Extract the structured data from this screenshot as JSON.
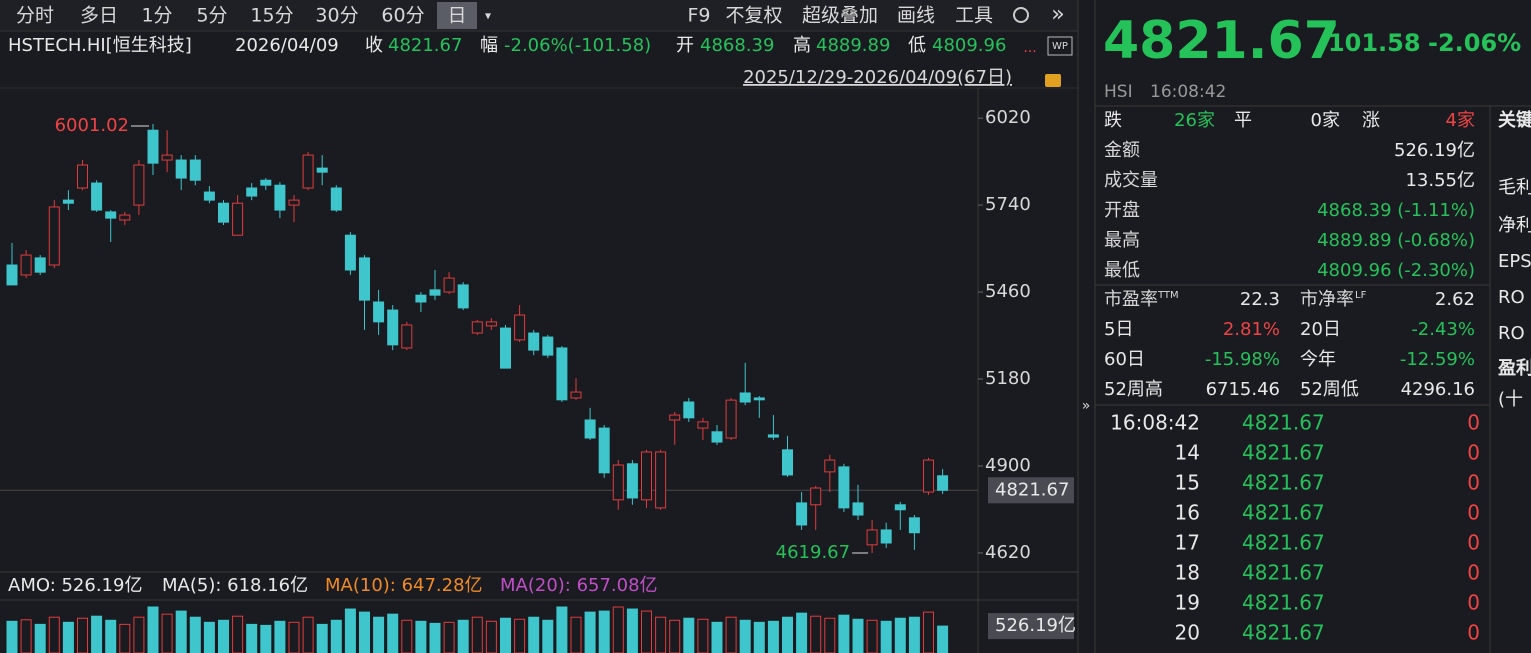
{
  "toolbar": {
    "periods": [
      "分时",
      "多日",
      "1分",
      "5分",
      "15分",
      "30分",
      "60分",
      "日"
    ],
    "tools": [
      "F9",
      "不复权",
      "超级叠加",
      "画线",
      "工具"
    ]
  },
  "quote_line": {
    "symbol": "HSTECH.HI[恒生科技]",
    "date": "2026/04/09",
    "close_label": "收",
    "close": 4821.67,
    "change_label": "幅",
    "change": "-2.06%(-101.58)",
    "open_label": "开",
    "open": 4868.39,
    "high_label": "高",
    "high": 4889.89,
    "low_label": "低",
    "low": 4809.96
  },
  "chart_data": {
    "type": "candlestick",
    "range_label": "2025/12/29-2026/04/09(67日)",
    "open": [
      5547,
      5515,
      5570,
      5547,
      5756,
      5795,
      5811,
      5718,
      5692,
      5740,
      5981,
      5885,
      5885,
      5885,
      5782,
      5746,
      5643,
      5795,
      5820,
      5804,
      5740,
      5795,
      5859,
      5795,
      5643,
      5570,
      5428,
      5402,
      5280,
      5450,
      5467,
      5460,
      5483,
      5328,
      5351,
      5344,
      5306,
      5328,
      5315,
      5280,
      5119,
      5048,
      5022,
      4791,
      4907,
      4791,
      4765,
      5048,
      5106,
      5022,
      5010,
      4990,
      5135,
      5119,
      5000,
      4952,
      4781,
      4775,
      4881,
      4897,
      4781,
      4646,
      4694,
      4775,
      4733,
      4816,
      4868.39
    ],
    "high": [
      5618,
      5595,
      5579,
      5756,
      5788,
      5885,
      5820,
      5724,
      5718,
      5885,
      6001.02,
      5981,
      5901,
      5901,
      5801,
      5756,
      5772,
      5811,
      5827,
      5814,
      5772,
      5911,
      5901,
      5804,
      5653,
      5579,
      5467,
      5418,
      5364,
      5460,
      5531,
      5524,
      5492,
      5370,
      5376,
      5354,
      5418,
      5338,
      5322,
      5286,
      5183,
      5087,
      5032,
      4919,
      4919,
      4952,
      4952,
      5074,
      5119,
      5055,
      5032,
      5119,
      5232,
      5125,
      5064,
      4997,
      4816,
      4836,
      4936,
      4907,
      4839,
      4726,
      4717,
      4784,
      4742,
      4926,
      4889.89
    ],
    "low": [
      5483,
      5505,
      5515,
      5537,
      5724,
      5788,
      5718,
      5621,
      5676,
      5708,
      5837,
      5846,
      5788,
      5804,
      5746,
      5676,
      5643,
      5756,
      5788,
      5698,
      5685,
      5788,
      5804,
      5718,
      5515,
      5338,
      5322,
      5273,
      5273,
      5396,
      5434,
      5454,
      5402,
      5322,
      5338,
      5215,
      5299,
      5257,
      5248,
      5106,
      5113,
      4984,
      4862,
      4759,
      4775,
      4765,
      4759,
      4968,
      5042,
      4984,
      4968,
      4984,
      5096,
      5055,
      4984,
      4865,
      4694,
      4694,
      4816,
      4752,
      4726,
      4619.67,
      4636,
      4694,
      4630,
      4807,
      4809.96
    ],
    "close": [
      5483,
      5579,
      5524,
      5734,
      5746,
      5869,
      5724,
      5698,
      5708,
      5869,
      5875,
      5901,
      5827,
      5820,
      5756,
      5685,
      5746,
      5769,
      5804,
      5724,
      5756,
      5901,
      5846,
      5724,
      5531,
      5434,
      5364,
      5290,
      5354,
      5428,
      5450,
      5505,
      5409,
      5364,
      5364,
      5215,
      5386,
      5273,
      5257,
      5113,
      5138,
      4990,
      4878,
      4903,
      4797,
      4945,
      4945,
      5064,
      5055,
      5042,
      4977,
      5112,
      5106,
      5113,
      4993,
      4871,
      4710,
      4829,
      4919,
      4765,
      4742,
      4694,
      4652,
      4759,
      4685,
      4919,
      4821.67
    ],
    "ylim": [
      4565,
      6117
    ],
    "yticks": [
      4620,
      4900,
      5180,
      5460,
      5740,
      6020
    ],
    "max_label": 6001.02,
    "min_label": 4619.67,
    "last_price": 4821.67,
    "up_color": "#e03c3c",
    "down_color": "#3fc6cc",
    "volume": {
      "amo": "AMO: 526.19亿",
      "ma5": "MA(5): 618.16亿",
      "ma10": "MA(10): 647.28亿",
      "ma20": "MA(20): 657.08亿",
      "last_label": "526.19亿",
      "values": [
        620,
        650,
        560,
        700,
        600,
        680,
        720,
        640,
        560,
        700,
        900,
        760,
        820,
        700,
        600,
        640,
        720,
        560,
        540,
        620,
        600,
        700,
        560,
        640,
        860,
        800,
        700,
        760,
        640,
        620,
        580,
        600,
        640,
        700,
        620,
        680,
        660,
        700,
        640,
        900,
        700,
        800,
        820,
        900,
        860,
        820,
        700,
        640,
        680,
        660,
        600,
        700,
        640,
        600,
        620,
        700,
        780,
        720,
        680,
        740,
        660,
        640,
        620,
        680,
        700,
        800,
        526.19
      ]
    }
  },
  "quote_panel": {
    "price": 4821.67,
    "change": -101.58,
    "change_pct": "-2.06%",
    "code": "HSI",
    "time": "16:08:42",
    "breadth": [
      "跌",
      "26家",
      "平",
      "0家",
      "涨",
      "4家"
    ],
    "rows": [
      [
        "金额",
        "526.19亿"
      ],
      [
        "成交量",
        "13.55亿"
      ],
      [
        "开盘",
        "4868.39 (-1.11%)"
      ],
      [
        "最高",
        "4889.89 (-0.68%)"
      ],
      [
        "最低",
        "4809.96 (-2.30%)"
      ]
    ],
    "ratios": [
      "市盈率",
      "TTM",
      22.3,
      "市净率",
      "LF",
      2.62
    ],
    "stats": [
      [
        "5日",
        "2.81%",
        "20日",
        "-2.43%"
      ],
      [
        "60日",
        "-15.98%",
        "今年",
        "-12.59%"
      ],
      [
        "52周高",
        "6715.46",
        "52周低",
        "4296.16"
      ]
    ],
    "ticks": [
      [
        "16:08:42",
        "4821.67",
        "0"
      ],
      [
        "14",
        "4821.67",
        "0"
      ],
      [
        "15",
        "4821.67",
        "0"
      ],
      [
        "16",
        "4821.67",
        "0"
      ],
      [
        "17",
        "4821.67",
        "0"
      ],
      [
        "18",
        "4821.67",
        "0"
      ],
      [
        "19",
        "4821.67",
        "0"
      ],
      [
        "20",
        "4821.67",
        "0"
      ]
    ]
  },
  "side_labels": [
    "关键",
    "毛利",
    "净利",
    "EPS",
    "RO",
    "RO",
    "盈利",
    "(十"
  ]
}
